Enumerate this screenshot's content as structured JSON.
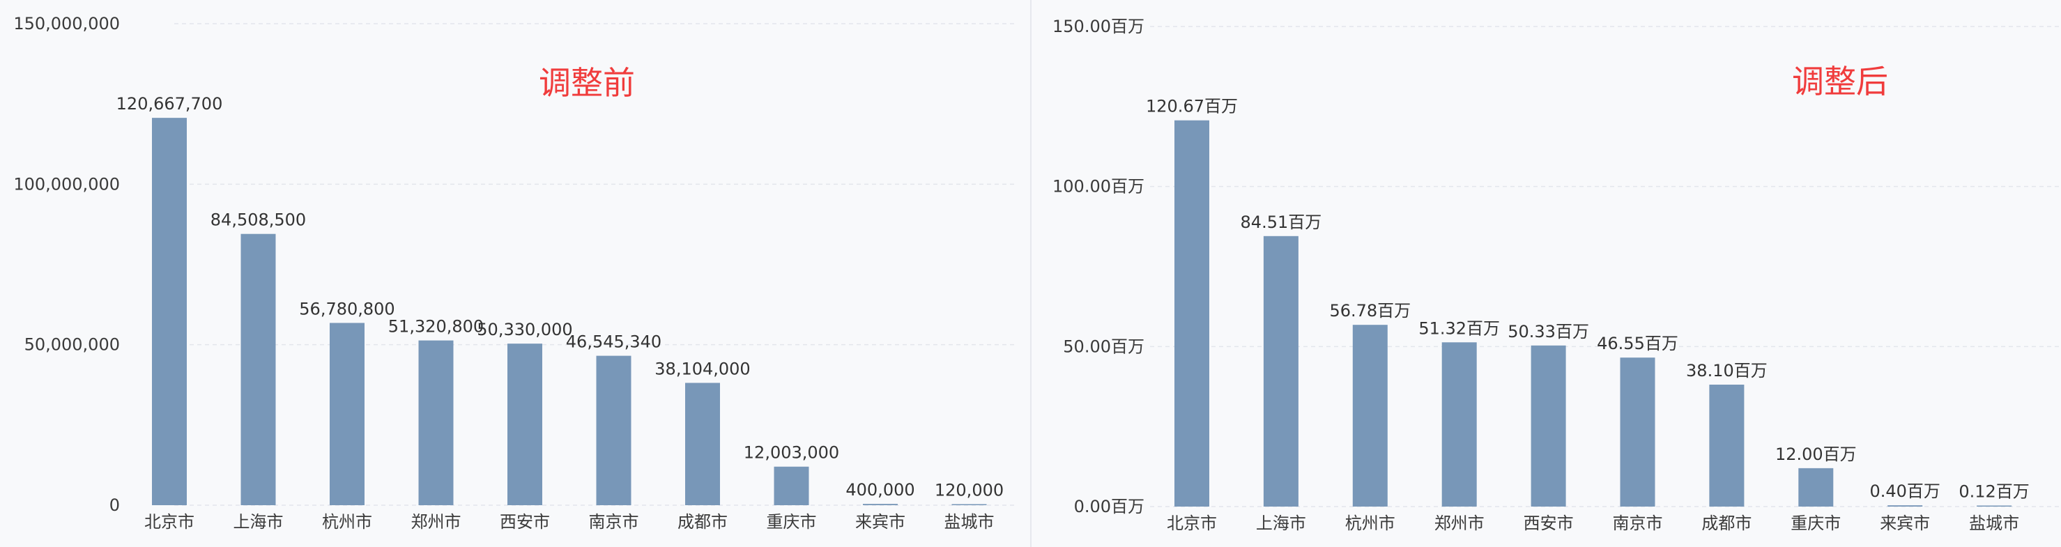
{
  "colors": {
    "bar": "#7897b8",
    "grid": "#e3e6ec",
    "axis_text": "#3a3a3a",
    "label_text": "#333333",
    "title": "#f03c3c"
  },
  "chart_data": [
    {
      "type": "bar",
      "title": "调整前",
      "categories": [
        "北京市",
        "上海市",
        "杭州市",
        "郑州市",
        "西安市",
        "南京市",
        "成都市",
        "重庆市",
        "来宾市",
        "盐城市"
      ],
      "values": [
        120667700,
        84508500,
        56780800,
        51320800,
        50330000,
        46545340,
        38104000,
        12003000,
        400000,
        120000
      ],
      "data_labels": [
        "120,667,700",
        "84,508,500",
        "56,780,800",
        "51,320,800",
        "50,330,000",
        "46,545,340",
        "38,104,000",
        "12,003,000",
        "400,000",
        "120,000"
      ],
      "yticks": [
        0,
        50000000,
        100000000,
        150000000
      ],
      "ytick_labels": [
        "0",
        "50,000,000",
        "100,000,000",
        "150,000,000"
      ],
      "ylim": [
        0,
        150000000
      ],
      "grid": true
    },
    {
      "type": "bar",
      "title": "调整后",
      "categories": [
        "北京市",
        "上海市",
        "杭州市",
        "郑州市",
        "西安市",
        "南京市",
        "成都市",
        "重庆市",
        "来宾市",
        "盐城市"
      ],
      "values": [
        120.67,
        84.51,
        56.78,
        51.32,
        50.33,
        46.55,
        38.1,
        12.0,
        0.4,
        0.12
      ],
      "data_labels": [
        "120.67百万",
        "84.51百万",
        "56.78百万",
        "51.32百万",
        "50.33百万",
        "46.55百万",
        "38.10百万",
        "12.00百万",
        "0.40百万",
        "0.12百万"
      ],
      "yticks": [
        0,
        50,
        100,
        150
      ],
      "ytick_labels": [
        "0.00百万",
        "50.00百万",
        "100.00百万",
        "150.00百万"
      ],
      "ylim": [
        0,
        150
      ],
      "grid": true
    }
  ]
}
